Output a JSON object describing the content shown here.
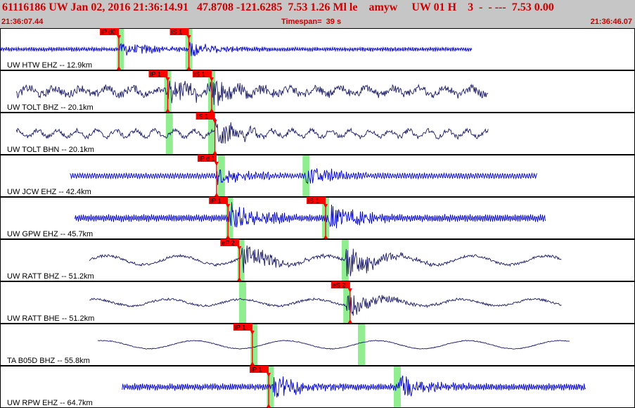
{
  "header": {
    "title": "61116186 UW Jan 02, 2016 21:36:14.91   47.8708 -121.6285  7.53 1.26 Ml le    amyw     UW 01 H    3  -  - ---  7.53 0.00",
    "start_time": "21:36:07.44",
    "timespan": "Timespan=  39 s",
    "end_time": "21:36:46.07"
  },
  "colors": {
    "background": "#ffffff",
    "header_bg": "#c6c6c6",
    "header_text": "#cc0000",
    "trace_blue": "#0000cc",
    "trace_navy": "#1a1a66",
    "pick_red": "#ff0000",
    "window_green": "#90ee90"
  },
  "chart_data": {
    "type": "seismogram",
    "x_unit": "s",
    "xlim": [
      0,
      39
    ],
    "traces": [
      {
        "label": "UW HTW EHZ -- 12.9km",
        "color": "blue",
        "start": 0,
        "end": 29,
        "amp": 0.25,
        "noise": 0.03,
        "period": 0.12,
        "picks": [
          {
            "label": "iP d0",
            "t": 7.3
          },
          {
            "label": "iS 1",
            "t": 11.6
          }
        ],
        "windows": [
          7.4,
          11.6
        ],
        "events": [
          7.3,
          11.6
        ]
      },
      {
        "label": "UW TOLT BHZ -- 20.1km",
        "color": "navy",
        "start": 1,
        "end": 30,
        "amp": 0.45,
        "noise": 0.18,
        "period": 1.6,
        "picks": [
          {
            "label": "iP 1",
            "t": 10.3
          },
          {
            "label": "iS 1",
            "t": 13.0
          }
        ],
        "windows": [
          10.3,
          13.0
        ],
        "events": [
          10.3,
          13.0
        ]
      },
      {
        "label": "UW TOLT BHN -- 20.1km",
        "color": "navy",
        "start": 1,
        "end": 30,
        "amp": 0.45,
        "noise": 0.1,
        "period": 1.2,
        "picks": [
          {
            "label": "iS 1",
            "t": 13.2
          }
        ],
        "windows": [
          10.4,
          13.0
        ],
        "events": [
          13.2
        ]
      },
      {
        "label": "UW JCW EHZ -- 42.4km",
        "color": "blue",
        "start": 4.3,
        "end": 33,
        "amp": 0.35,
        "noise": 0.02,
        "period": 0.15,
        "picks": [
          {
            "label": "iP d 1",
            "t": 13.3
          }
        ],
        "windows": [
          13.6,
          18.8
        ],
        "events": [
          13.3,
          18.8
        ]
      },
      {
        "label": "UW GPW EHZ -- 45.7km",
        "color": "blue",
        "start": 4.6,
        "end": 33.5,
        "amp": 0.45,
        "noise": 0.03,
        "period": 0.12,
        "picks": [
          {
            "label": "iP 1",
            "t": 14.0
          },
          {
            "label": "iS 1",
            "t": 20.0
          }
        ],
        "windows": [
          14.1,
          20.0
        ],
        "events": [
          14.1,
          20.2
        ]
      },
      {
        "label": "UW RATT BHZ -- 51.2km",
        "color": "navy",
        "start": 5.5,
        "end": 34.5,
        "amp": 0.6,
        "noise": 0.06,
        "period": 4.5,
        "picks": [
          {
            "label": "eP 2",
            "t": 14.7
          }
        ],
        "windows": [
          14.8,
          21.2
        ],
        "events": [
          14.8,
          21.2
        ]
      },
      {
        "label": "UW RATT BHE -- 51.2km",
        "color": "navy",
        "start": 5.5,
        "end": 34.5,
        "amp": 0.45,
        "noise": 0.05,
        "period": 4.5,
        "picks": [
          {
            "label": "eS 2",
            "t": 21.5
          }
        ],
        "windows": [
          14.9,
          21.3
        ],
        "events": [
          21.3
        ]
      },
      {
        "label": "TA B05D BHZ -- 55.8km",
        "color": "navy",
        "start": 6,
        "end": 35,
        "amp": 0.55,
        "noise": 0.02,
        "period": 5.6,
        "picks": [
          {
            "label": "iP 1",
            "t": 15.5
          }
        ],
        "windows": [
          15.6,
          22.2
        ],
        "events": []
      },
      {
        "label": "UW RPW EHZ -- 64.7km",
        "color": "blue",
        "start": 7.5,
        "end": 36,
        "amp": 0.4,
        "noise": 0.04,
        "period": 0.12,
        "picks": [
          {
            "label": "iP 1",
            "t": 16.5
          }
        ],
        "windows": [
          16.6,
          24.4
        ],
        "events": [
          16.7,
          24.4
        ]
      }
    ]
  }
}
